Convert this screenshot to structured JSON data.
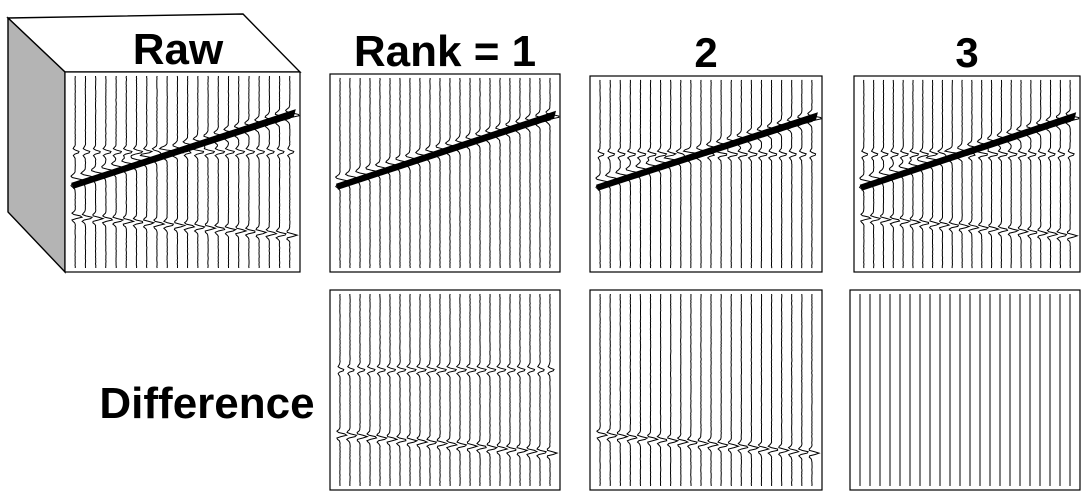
{
  "labels": {
    "raw": "Raw",
    "rank": "Rank = 1",
    "rank2": "2",
    "rank3": "3",
    "difference": "Difference"
  },
  "panels": {
    "raw": {
      "content": "flat event + dipping event + horizontal event"
    },
    "rank1": {
      "content": "dipping event only"
    },
    "rank2": {
      "content": "flat event + dipping event"
    },
    "rank3": {
      "content": "all events"
    },
    "diff1": {
      "content": "flat event + horizontal event"
    },
    "diff2": {
      "content": "horizontal event"
    },
    "diff3": {
      "content": "empty"
    }
  },
  "traces_per_panel": 22,
  "colors": {
    "ink": "#000000",
    "background": "#ffffff",
    "cube_side": "#b4b4b4"
  }
}
